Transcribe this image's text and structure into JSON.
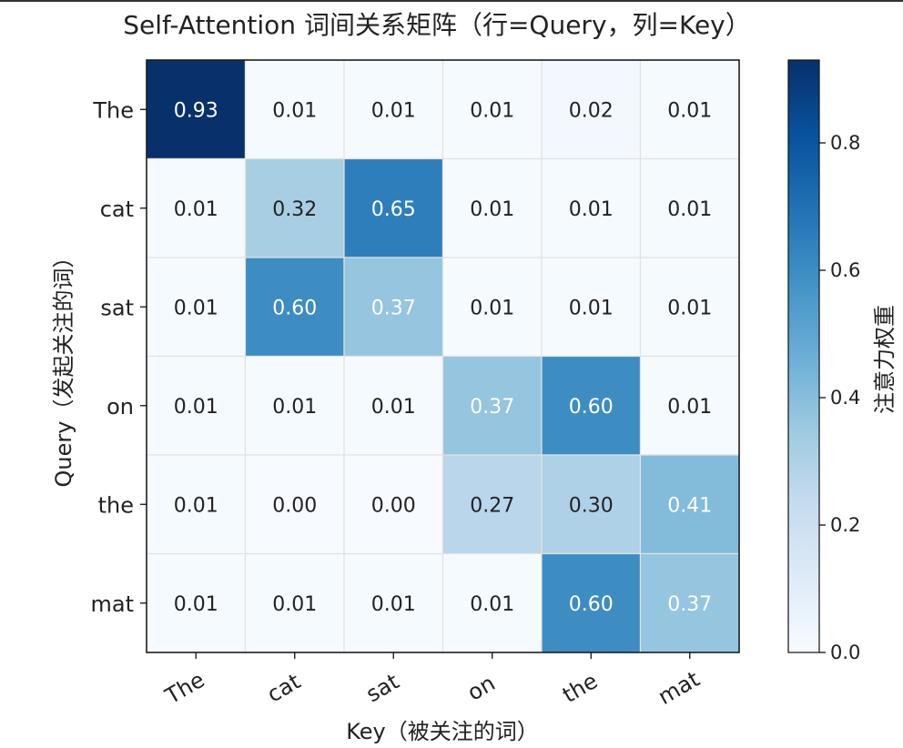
{
  "chart_data": {
    "type": "heatmap",
    "title": "Self-Attention 词间关系矩阵（行=Query，列=Key）",
    "xlabel": "Key（被关注的词）",
    "ylabel": "Query（发起关注的词）",
    "colorbar_label": "注意力权重",
    "x_categories": [
      "The",
      "cat",
      "sat",
      "on",
      "the",
      "mat"
    ],
    "y_categories": [
      "The",
      "cat",
      "sat",
      "on",
      "the",
      "mat"
    ],
    "values": [
      [
        0.93,
        0.01,
        0.01,
        0.01,
        0.02,
        0.01
      ],
      [
        0.01,
        0.32,
        0.65,
        0.01,
        0.01,
        0.01
      ],
      [
        0.01,
        0.6,
        0.37,
        0.01,
        0.01,
        0.01
      ],
      [
        0.01,
        0.01,
        0.01,
        0.37,
        0.6,
        0.01
      ],
      [
        0.01,
        0.0,
        0.0,
        0.27,
        0.3,
        0.41
      ],
      [
        0.01,
        0.01,
        0.01,
        0.01,
        0.6,
        0.37
      ]
    ],
    "value_labels": [
      [
        "0.93",
        "0.01",
        "0.01",
        "0.01",
        "0.02",
        "0.01"
      ],
      [
        "0.01",
        "0.32",
        "0.65",
        "0.01",
        "0.01",
        "0.01"
      ],
      [
        "0.01",
        "0.60",
        "0.37",
        "0.01",
        "0.01",
        "0.01"
      ],
      [
        "0.01",
        "0.01",
        "0.01",
        "0.37",
        "0.60",
        "0.01"
      ],
      [
        "0.01",
        "0.00",
        "0.00",
        "0.27",
        "0.30",
        "0.41"
      ],
      [
        "0.01",
        "0.01",
        "0.01",
        "0.01",
        "0.60",
        "0.37"
      ]
    ],
    "colormap": "Blues",
    "color_range": [
      0.0,
      0.93
    ],
    "colorbar_ticks": [
      "0.0",
      "0.2",
      "0.4",
      "0.6",
      "0.8"
    ],
    "colorbar_tick_values": [
      0.0,
      0.2,
      0.4,
      0.6,
      0.8
    ]
  }
}
